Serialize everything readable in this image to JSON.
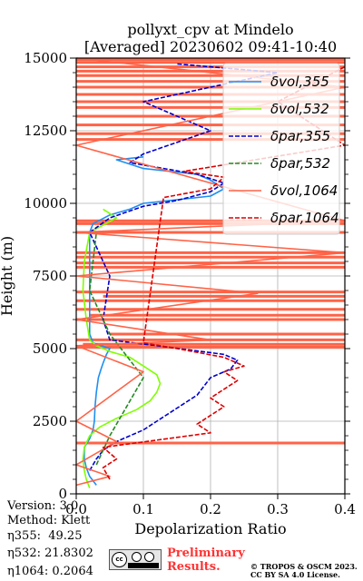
{
  "chart_data": {
    "type": "line",
    "title_line1": "pollyxt_cpv at Mindelo",
    "title_line2": "[Averaged] 20230602 09:41-10:40",
    "xlabel": "Depolarization Ratio",
    "ylabel": "Height (m)",
    "xlim": [
      0.0,
      0.4
    ],
    "ylim": [
      0,
      15000
    ],
    "x_ticks": [
      "0.0",
      "0.1",
      "0.2",
      "0.3",
      "0.4"
    ],
    "y_ticks": [
      "0",
      "2500",
      "5000",
      "7500",
      "10000",
      "12500",
      "15000"
    ],
    "grid": true,
    "legend_position": "upper right",
    "series": [
      {
        "name": "δvol,355",
        "color": "#1f8ff0",
        "style": "solid",
        "points": [
          [
            0.03,
            300
          ],
          [
            0.02,
            600
          ],
          [
            0.015,
            900
          ],
          [
            0.012,
            1200
          ],
          [
            0.012,
            1600
          ],
          [
            0.02,
            1900
          ],
          [
            0.025,
            2200
          ],
          [
            0.027,
            2500
          ],
          [
            0.028,
            3000
          ],
          [
            0.03,
            3500
          ],
          [
            0.033,
            4000
          ],
          [
            0.037,
            4300
          ],
          [
            0.04,
            4500
          ],
          [
            0.045,
            4800
          ],
          [
            0.05,
            5000
          ],
          [
            0.025,
            5200
          ],
          [
            0.02,
            5500
          ],
          [
            0.02,
            6000
          ],
          [
            0.02,
            7000
          ],
          [
            0.02,
            8000
          ],
          [
            0.02,
            9000
          ],
          [
            0.025,
            9300
          ],
          [
            0.05,
            9600
          ],
          [
            0.08,
            9800
          ],
          [
            0.1,
            10000
          ],
          [
            0.14,
            10100
          ],
          [
            0.2,
            10250
          ],
          [
            0.22,
            10500
          ],
          [
            0.2,
            10800
          ],
          [
            0.18,
            11000
          ],
          [
            0.1,
            11200
          ],
          [
            0.06,
            11500
          ],
          [
            0.1,
            11600
          ]
        ]
      },
      {
        "name": "δvol,532",
        "color": "#7fff00",
        "style": "solid",
        "points": [
          [
            0.02,
            200
          ],
          [
            0.015,
            500
          ],
          [
            0.012,
            800
          ],
          [
            0.01,
            1200
          ],
          [
            0.012,
            1600
          ],
          [
            0.02,
            2000
          ],
          [
            0.035,
            2300
          ],
          [
            0.06,
            2600
          ],
          [
            0.09,
            2900
          ],
          [
            0.11,
            3200
          ],
          [
            0.12,
            3500
          ],
          [
            0.125,
            3800
          ],
          [
            0.12,
            4100
          ],
          [
            0.1,
            4400
          ],
          [
            0.08,
            4700
          ],
          [
            0.05,
            4900
          ],
          [
            0.03,
            5100
          ],
          [
            0.02,
            5300
          ],
          [
            0.015,
            6000
          ],
          [
            0.01,
            7000
          ],
          [
            0.012,
            8000
          ],
          [
            0.02,
            9000
          ],
          [
            0.06,
            9500
          ],
          [
            0.04,
            9800
          ]
        ]
      },
      {
        "name": "δpar,355",
        "color": "#0000cd",
        "style": "dashed",
        "points": [
          [
            0.02,
            800
          ],
          [
            0.03,
            1200
          ],
          [
            0.04,
            1500
          ],
          [
            0.06,
            1800
          ],
          [
            0.08,
            2000
          ],
          [
            0.1,
            2200
          ],
          [
            0.12,
            2500
          ],
          [
            0.14,
            2800
          ],
          [
            0.16,
            3100
          ],
          [
            0.18,
            3400
          ],
          [
            0.19,
            3700
          ],
          [
            0.2,
            4000
          ],
          [
            0.23,
            4300
          ],
          [
            0.24,
            4600
          ],
          [
            0.22,
            4800
          ],
          [
            0.12,
            5100
          ],
          [
            0.05,
            5300
          ],
          [
            0.04,
            6000
          ],
          [
            0.05,
            7500
          ],
          [
            0.03,
            8500
          ],
          [
            0.02,
            9000
          ],
          [
            0.05,
            9500
          ],
          [
            0.1,
            9900
          ],
          [
            0.15,
            10100
          ],
          [
            0.2,
            10400
          ],
          [
            0.22,
            10700
          ],
          [
            0.18,
            11000
          ],
          [
            0.08,
            11400
          ],
          [
            0.1,
            11700
          ],
          [
            0.2,
            12500
          ],
          [
            0.1,
            13500
          ],
          [
            0.3,
            14500
          ],
          [
            0.15,
            14800
          ]
        ]
      },
      {
        "name": "δpar,532",
        "color": "#228b22",
        "style": "dashed",
        "points": [
          [
            0.03,
            1000
          ],
          [
            0.05,
            2000
          ],
          [
            0.1,
            4000
          ],
          [
            0.05,
            5500
          ],
          [
            0.02,
            7000
          ],
          [
            0.03,
            9000
          ]
        ]
      },
      {
        "name": "δvol,1064",
        "color": "#ff6347",
        "style": "solid",
        "points": [
          [
            0.0,
            300
          ],
          [
            0.05,
            600
          ],
          [
            0.0,
            1000
          ],
          [
            0.06,
            1800
          ],
          [
            0.0,
            2500
          ],
          [
            0.1,
            4200
          ],
          [
            0.0,
            5100
          ],
          [
            0.2,
            5300
          ],
          [
            0.0,
            6000
          ],
          [
            0.27,
            6900
          ],
          [
            0.0,
            7500
          ],
          [
            0.4,
            8300
          ],
          [
            0.0,
            9000
          ],
          [
            0.4,
            9400
          ],
          [
            0.0,
            12000
          ],
          [
            0.4,
            14000
          ],
          [
            0.0,
            15000
          ]
        ]
      },
      {
        "name": "δpar,1064",
        "color": "#dd0000",
        "style": "dashed",
        "points": [
          [
            0.05,
            500
          ],
          [
            0.04,
            900
          ],
          [
            0.06,
            1200
          ],
          [
            0.04,
            1600
          ],
          [
            0.2,
            2100
          ],
          [
            0.18,
            2400
          ],
          [
            0.2,
            2700
          ],
          [
            0.22,
            3000
          ],
          [
            0.2,
            3300
          ],
          [
            0.22,
            3600
          ],
          [
            0.24,
            3900
          ],
          [
            0.22,
            4200
          ],
          [
            0.25,
            4400
          ],
          [
            0.22,
            4700
          ],
          [
            0.15,
            5000
          ],
          [
            0.1,
            5200
          ],
          [
            0.13,
            10200
          ],
          [
            0.2,
            10500
          ],
          [
            0.22,
            10900
          ],
          [
            0.16,
            11100
          ],
          [
            0.4,
            12000
          ],
          [
            0.3,
            13500
          ],
          [
            0.4,
            14700
          ]
        ]
      }
    ],
    "cloud_bands": {
      "color": "#ff6347",
      "heights": [
        1750,
        5050,
        5150,
        5300,
        5500,
        6000,
        6150,
        6350,
        6650,
        6800,
        6950,
        7800,
        7950,
        8150,
        8300,
        9000,
        9300,
        9400,
        12200,
        12400,
        12700,
        13000,
        13300,
        13500,
        13750,
        14000,
        14200,
        14400,
        14550,
        14700,
        14850,
        14950
      ],
      "start_x": [
        0.0,
        0.0,
        0.01,
        0.0,
        0.05,
        0.0,
        0.02,
        0.0,
        0.0,
        0.04,
        0.0,
        0.0,
        0.0,
        0.0,
        0.0,
        0.0,
        0.0,
        0.0,
        0.0,
        0.0,
        0.0,
        0.0,
        0.0,
        0.0,
        0.0,
        0.0,
        0.0,
        0.0,
        0.0,
        0.0,
        0.0,
        0.0
      ]
    }
  },
  "info": {
    "version": "Version: 3.0",
    "method": "Method: Klett",
    "eta355": "η355:  49.25",
    "eta532": "η532: 21.8302",
    "eta1064": "η1064: 0.2064"
  },
  "footer": {
    "cc_text": "cc",
    "preliminary": "Preliminary\nResults.",
    "copyright": "© TROPOS & OSCM 2023.\nCC BY SA 4.0 License."
  }
}
